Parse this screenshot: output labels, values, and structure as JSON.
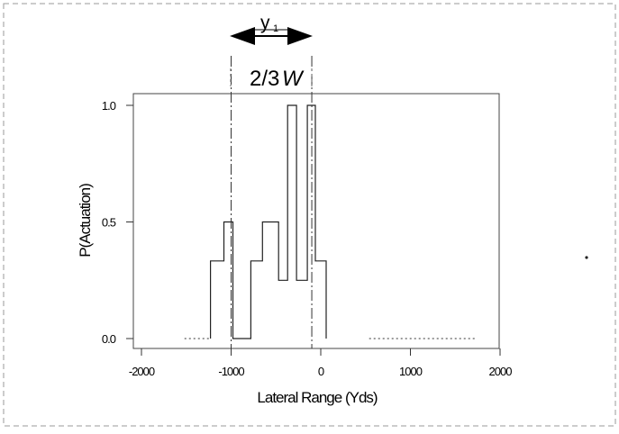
{
  "chart_data": {
    "type": "line",
    "title": "",
    "xlabel": "Lateral Range (Yds)",
    "ylabel": "P(Actuation)",
    "xlim": [
      -2000,
      2000
    ],
    "ylim": [
      0.0,
      1.0
    ],
    "x_ticks": [
      -2000,
      -1000,
      0,
      1000,
      2000
    ],
    "y_ticks": [
      0.0,
      0.5,
      1.0
    ],
    "x_tick_labels": [
      "-2000",
      "-1000",
      "0",
      "1000",
      "2000"
    ],
    "y_tick_labels": [
      "0.0",
      "0.5",
      "1.0"
    ],
    "grid": false,
    "series": [
      {
        "style": "solid",
        "step_points": [
          [
            -1230,
            0.0
          ],
          [
            -1230,
            0.333
          ],
          [
            -1080,
            0.333
          ],
          [
            -1080,
            0.5
          ],
          [
            -980,
            0.5
          ],
          [
            -980,
            0.0
          ],
          [
            -780,
            0.0
          ],
          [
            -780,
            0.333
          ],
          [
            -650,
            0.333
          ],
          [
            -650,
            0.5
          ],
          [
            -470,
            0.5
          ],
          [
            -470,
            0.25
          ],
          [
            -370,
            0.25
          ],
          [
            -370,
            1.0
          ],
          [
            -270,
            1.0
          ],
          [
            -270,
            0.25
          ],
          [
            -150,
            0.25
          ],
          [
            -150,
            1.0
          ],
          [
            -60,
            1.0
          ],
          [
            -60,
            0.333
          ],
          [
            60,
            0.333
          ],
          [
            60,
            0.0
          ]
        ]
      },
      {
        "style": "dotted",
        "segments": [
          [
            [
              -1520,
              0.0
            ],
            [
              -1230,
              0.0
            ]
          ],
          [
            [
              540,
              0.0
            ],
            [
              1720,
              0.0
            ]
          ]
        ]
      }
    ],
    "reference_lines": [
      {
        "style": "dash-dot",
        "x": -1000
      },
      {
        "style": "dash-dot",
        "x": -100
      }
    ],
    "annotations": {
      "width_label": "2/3 W",
      "width_label_main": "2/3",
      "width_label_var": "W",
      "arrow_label": "y",
      "arrow_label_sub": "1"
    }
  }
}
